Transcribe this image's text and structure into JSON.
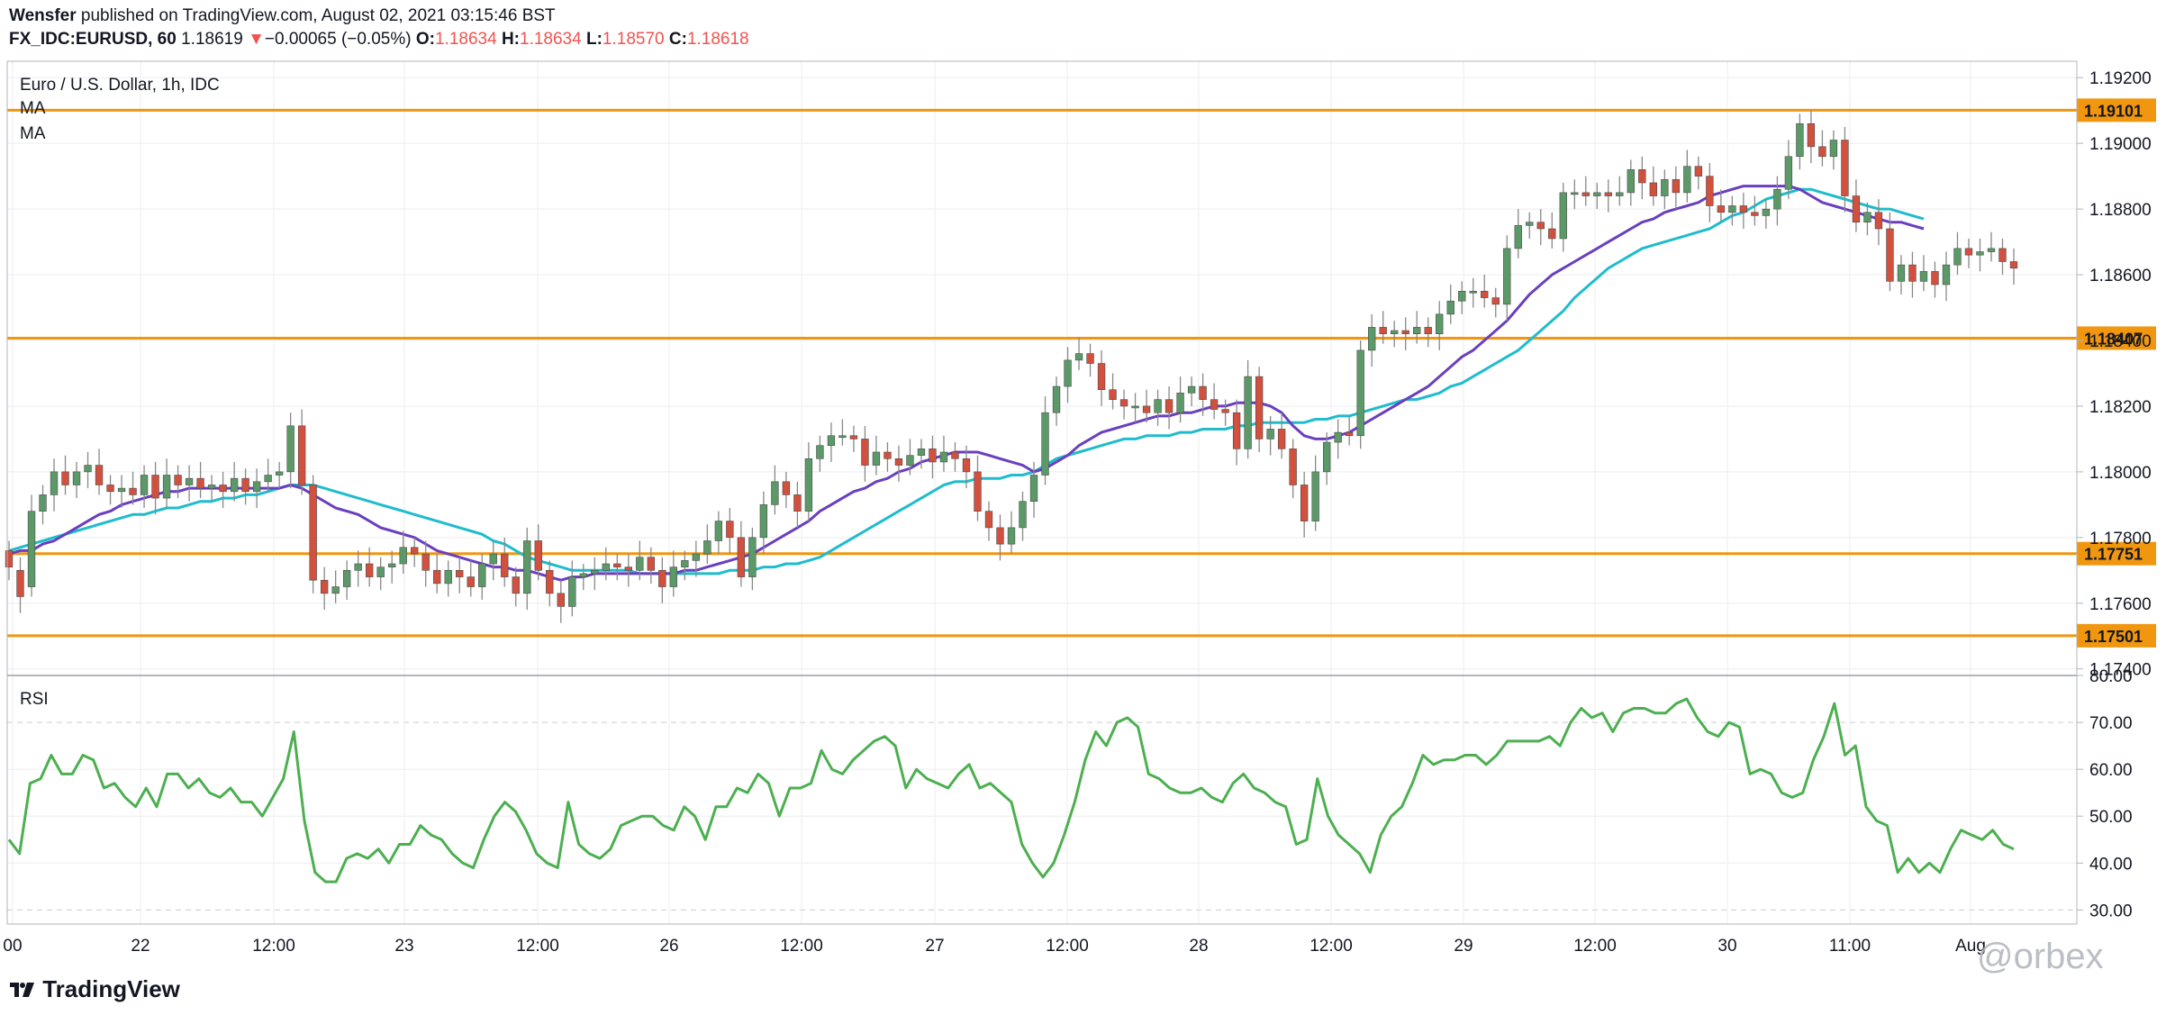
{
  "header": {
    "author": "Wensfer",
    "published": " published on TradingView.com, August 02, 2021 03:15:46 BST",
    "symbol_line": "FX_IDC:EURUSD, 60",
    "last": "1.18619",
    "change_arrow": "▼",
    "change": "−0.00065 (−0.05%)",
    "o_label": "O:",
    "o_val": "1.18634",
    "h_label": "H:",
    "h_val": "1.18634",
    "l_label": "L:",
    "l_val": "1.18570",
    "c_label": "C:",
    "c_val": "1.18618"
  },
  "legend": {
    "title": "Euro / U.S. Dollar, 1h, IDC",
    "ma1": "MA",
    "ma2": "MA",
    "rsi": "RSI"
  },
  "footer": {
    "logo": "TradingView",
    "watermark": "@orbex"
  },
  "colors": {
    "up": "#5b9a68",
    "down": "#d2503e",
    "wick": "#888888",
    "level": "#f0960f",
    "ma_fast": "#6a3fbf",
    "ma_slow": "#1ebccc",
    "rsi": "#4caf50",
    "grid": "#eceef1"
  },
  "chart_data": [
    {
      "type": "candlestick",
      "title": "Euro / U.S. Dollar, 1h, IDC",
      "ylim": [
        1.1738,
        1.1925
      ],
      "y_ticks": [
        "1.19200",
        "1.19000",
        "1.18800",
        "1.18600",
        "1.18400",
        "1.18200",
        "1.18000",
        "1.17800",
        "1.17600",
        "1.17400"
      ],
      "x_ticks": [
        "00",
        "22",
        "12:00",
        "23",
        "12:00",
        "26",
        "12:00",
        "27",
        "12:00",
        "28",
        "12:00",
        "29",
        "12:00",
        "30",
        "11:00",
        "Aug"
      ],
      "levels": [
        {
          "label": "1.19101",
          "value": 1.19101
        },
        {
          "label": "1.18407",
          "value": 1.18407
        },
        {
          "label": "1.17751",
          "value": 1.17751
        },
        {
          "label": "1.17501",
          "value": 1.17501
        }
      ],
      "candles": [
        [
          1.1776,
          1.1771
        ],
        [
          1.177,
          1.1762
        ],
        [
          1.1765,
          1.1788
        ],
        [
          1.1788,
          1.1793
        ],
        [
          1.1793,
          1.18
        ],
        [
          1.18,
          1.1796
        ],
        [
          1.1796,
          1.18
        ],
        [
          1.18,
          1.1802
        ],
        [
          1.1802,
          1.1796
        ],
        [
          1.1796,
          1.1794
        ],
        [
          1.1794,
          1.1795
        ],
        [
          1.1795,
          1.1793
        ],
        [
          1.1793,
          1.1799
        ],
        [
          1.1799,
          1.1792
        ],
        [
          1.1792,
          1.1799
        ],
        [
          1.1799,
          1.1796
        ],
        [
          1.1796,
          1.1798
        ],
        [
          1.1798,
          1.1795
        ],
        [
          1.1795,
          1.1796
        ],
        [
          1.1796,
          1.1794
        ],
        [
          1.1794,
          1.1798
        ],
        [
          1.1798,
          1.1794
        ],
        [
          1.1794,
          1.1797
        ],
        [
          1.1797,
          1.1799
        ],
        [
          1.1799,
          1.18
        ],
        [
          1.18,
          1.1814
        ],
        [
          1.1814,
          1.1796
        ],
        [
          1.1796,
          1.1767
        ],
        [
          1.1767,
          1.1763
        ],
        [
          1.1763,
          1.1765
        ],
        [
          1.1765,
          1.177
        ],
        [
          1.177,
          1.1772
        ],
        [
          1.1772,
          1.1768
        ],
        [
          1.1768,
          1.1771
        ],
        [
          1.1771,
          1.1772
        ],
        [
          1.1772,
          1.1777
        ],
        [
          1.1777,
          1.1775
        ],
        [
          1.1775,
          1.177
        ],
        [
          1.177,
          1.1766
        ],
        [
          1.1766,
          1.177
        ],
        [
          1.177,
          1.1768
        ],
        [
          1.1768,
          1.1765
        ],
        [
          1.1765,
          1.1772
        ],
        [
          1.1772,
          1.1775
        ],
        [
          1.1775,
          1.1768
        ],
        [
          1.1768,
          1.1763
        ],
        [
          1.1763,
          1.1779
        ],
        [
          1.1779,
          1.177
        ],
        [
          1.177,
          1.1763
        ],
        [
          1.1763,
          1.1759
        ],
        [
          1.1759,
          1.1768
        ],
        [
          1.1768,
          1.1769
        ],
        [
          1.1769,
          1.177
        ],
        [
          1.177,
          1.1772
        ],
        [
          1.1772,
          1.1771
        ],
        [
          1.1771,
          1.177
        ],
        [
          1.177,
          1.1774
        ],
        [
          1.1774,
          1.177
        ],
        [
          1.177,
          1.1765
        ],
        [
          1.1765,
          1.1771
        ],
        [
          1.1771,
          1.1773
        ],
        [
          1.1773,
          1.1775
        ],
        [
          1.1775,
          1.1779
        ],
        [
          1.1779,
          1.1785
        ],
        [
          1.1785,
          1.178
        ],
        [
          1.178,
          1.1768
        ],
        [
          1.1768,
          1.178
        ],
        [
          1.178,
          1.179
        ],
        [
          1.179,
          1.1797
        ],
        [
          1.1797,
          1.1793
        ],
        [
          1.1793,
          1.1788
        ],
        [
          1.1788,
          1.1804
        ],
        [
          1.1804,
          1.1808
        ],
        [
          1.1808,
          1.1811
        ],
        [
          1.1811,
          1.1811
        ],
        [
          1.1811,
          1.181
        ],
        [
          1.181,
          1.1802
        ],
        [
          1.1802,
          1.1806
        ],
        [
          1.1806,
          1.1804
        ],
        [
          1.1804,
          1.1802
        ],
        [
          1.1802,
          1.1805
        ],
        [
          1.1805,
          1.1807
        ],
        [
          1.1807,
          1.1803
        ],
        [
          1.1803,
          1.1806
        ],
        [
          1.1806,
          1.1804
        ],
        [
          1.1804,
          1.18
        ],
        [
          1.18,
          1.1788
        ],
        [
          1.1788,
          1.1783
        ],
        [
          1.1783,
          1.1778
        ],
        [
          1.1778,
          1.1783
        ],
        [
          1.1783,
          1.1791
        ],
        [
          1.1791,
          1.1799
        ],
        [
          1.1799,
          1.1818
        ],
        [
          1.1818,
          1.1826
        ],
        [
          1.1826,
          1.1834
        ],
        [
          1.1834,
          1.1836
        ],
        [
          1.1836,
          1.1833
        ],
        [
          1.1833,
          1.1825
        ],
        [
          1.1825,
          1.1822
        ],
        [
          1.1822,
          1.182
        ],
        [
          1.182,
          1.182
        ],
        [
          1.182,
          1.1818
        ],
        [
          1.1818,
          1.1822
        ],
        [
          1.1822,
          1.1818
        ],
        [
          1.1818,
          1.1824
        ],
        [
          1.1824,
          1.1826
        ],
        [
          1.1826,
          1.1822
        ],
        [
          1.1822,
          1.1819
        ],
        [
          1.1819,
          1.1818
        ],
        [
          1.1818,
          1.1807
        ],
        [
          1.1807,
          1.1829
        ],
        [
          1.1829,
          1.181
        ],
        [
          1.181,
          1.1813
        ],
        [
          1.1813,
          1.1807
        ],
        [
          1.1807,
          1.1796
        ],
        [
          1.1796,
          1.1785
        ],
        [
          1.1785,
          1.18
        ],
        [
          1.18,
          1.1809
        ],
        [
          1.1809,
          1.1812
        ],
        [
          1.1812,
          1.1811
        ],
        [
          1.1811,
          1.1837
        ],
        [
          1.1837,
          1.1844
        ],
        [
          1.1844,
          1.1842
        ],
        [
          1.1842,
          1.1843
        ],
        [
          1.1843,
          1.1842
        ],
        [
          1.1842,
          1.1844
        ],
        [
          1.1844,
          1.1842
        ],
        [
          1.1842,
          1.1848
        ],
        [
          1.1848,
          1.1852
        ],
        [
          1.1852,
          1.1855
        ],
        [
          1.1855,
          1.1855
        ],
        [
          1.1855,
          1.1853
        ],
        [
          1.1853,
          1.1851
        ],
        [
          1.1851,
          1.1868
        ],
        [
          1.1868,
          1.1875
        ],
        [
          1.1875,
          1.1876
        ],
        [
          1.1876,
          1.1874
        ],
        [
          1.1874,
          1.1871
        ],
        [
          1.1871,
          1.1885
        ],
        [
          1.1885,
          1.1885
        ],
        [
          1.1885,
          1.1884
        ],
        [
          1.1884,
          1.1885
        ],
        [
          1.1885,
          1.1884
        ],
        [
          1.1884,
          1.1885
        ],
        [
          1.1885,
          1.1892
        ],
        [
          1.1892,
          1.1888
        ],
        [
          1.1888,
          1.1884
        ],
        [
          1.1884,
          1.1889
        ],
        [
          1.1889,
          1.1885
        ],
        [
          1.1885,
          1.1893
        ],
        [
          1.1893,
          1.189
        ],
        [
          1.189,
          1.1881
        ],
        [
          1.1881,
          1.1879
        ],
        [
          1.1879,
          1.1881
        ],
        [
          1.1881,
          1.1879
        ],
        [
          1.1879,
          1.1878
        ],
        [
          1.1878,
          1.188
        ],
        [
          1.188,
          1.1886
        ],
        [
          1.1886,
          1.1896
        ],
        [
          1.1896,
          1.1906
        ],
        [
          1.1906,
          1.1899
        ],
        [
          1.1899,
          1.1896
        ],
        [
          1.1896,
          1.1901
        ],
        [
          1.1901,
          1.1884
        ],
        [
          1.1884,
          1.1876
        ],
        [
          1.1876,
          1.1879
        ],
        [
          1.1879,
          1.1874
        ],
        [
          1.1874,
          1.1858
        ],
        [
          1.1858,
          1.1863
        ],
        [
          1.1863,
          1.1858
        ],
        [
          1.1858,
          1.1861
        ],
        [
          1.1861,
          1.1857
        ],
        [
          1.1857,
          1.1863
        ],
        [
          1.1863,
          1.1868
        ],
        [
          1.1868,
          1.1866
        ],
        [
          1.1866,
          1.1867
        ],
        [
          1.1867,
          1.1868
        ],
        [
          1.1868,
          1.1864
        ],
        [
          1.1864,
          1.1862
        ]
      ],
      "ma_fast": [
        1.1775,
        1.1776,
        1.1776,
        1.1778,
        1.1779,
        1.1781,
        1.1783,
        1.1785,
        1.1787,
        1.1788,
        1.179,
        1.1791,
        1.1792,
        1.1793,
        1.1794,
        1.1794,
        1.1795,
        1.1795,
        1.1795,
        1.1795,
        1.1795,
        1.1795,
        1.1795,
        1.1795,
        1.1795,
        1.1796,
        1.1795,
        1.1793,
        1.1791,
        1.1789,
        1.1788,
        1.1787,
        1.1785,
        1.1783,
        1.1782,
        1.1781,
        1.178,
        1.1778,
        1.1776,
        1.1775,
        1.1774,
        1.1773,
        1.1772,
        1.1771,
        1.1771,
        1.177,
        1.177,
        1.1769,
        1.1768,
        1.1767,
        1.1768,
        1.1768,
        1.1769,
        1.1769,
        1.1769,
        1.1769,
        1.1769,
        1.1769,
        1.1769,
        1.1769,
        1.177,
        1.177,
        1.1771,
        1.1772,
        1.1773,
        1.1774,
        1.1775,
        1.1777,
        1.1779,
        1.1781,
        1.1783,
        1.1785,
        1.1788,
        1.179,
        1.1792,
        1.1794,
        1.1795,
        1.1797,
        1.1798,
        1.18,
        1.1801,
        1.1803,
        1.1804,
        1.1805,
        1.1806,
        1.1806,
        1.1806,
        1.1805,
        1.1804,
        1.1803,
        1.1802,
        1.18,
        1.1801,
        1.1803,
        1.1805,
        1.1808,
        1.181,
        1.1812,
        1.1813,
        1.1814,
        1.1815,
        1.1816,
        1.1817,
        1.1817,
        1.1818,
        1.1818,
        1.1819,
        1.182,
        1.182,
        1.1821,
        1.1821,
        1.1821,
        1.182,
        1.1818,
        1.1814,
        1.1811,
        1.181,
        1.181,
        1.1811,
        1.1812,
        1.1814,
        1.1816,
        1.1818,
        1.182,
        1.1822,
        1.1824,
        1.1826,
        1.1829,
        1.1832,
        1.1835,
        1.1837,
        1.184,
        1.1843,
        1.1846,
        1.185,
        1.1854,
        1.1857,
        1.186,
        1.1862,
        1.1864,
        1.1866,
        1.1868,
        1.187,
        1.1872,
        1.1874,
        1.1876,
        1.1877,
        1.1879,
        1.188,
        1.1881,
        1.1882,
        1.1884,
        1.1885,
        1.1886,
        1.1887,
        1.1887,
        1.1887,
        1.1887,
        1.1887,
        1.1886,
        1.1884,
        1.1882,
        1.1881,
        1.188,
        1.1879,
        1.1878,
        1.1877,
        1.1876,
        1.1876,
        1.1875,
        1.1874
      ],
      "ma_slow": [
        1.1776,
        1.1777,
        1.1778,
        1.1779,
        1.178,
        1.1781,
        1.1782,
        1.1783,
        1.1784,
        1.1785,
        1.1786,
        1.1787,
        1.1787,
        1.1788,
        1.1789,
        1.1789,
        1.179,
        1.1791,
        1.1791,
        1.1792,
        1.1792,
        1.1793,
        1.1793,
        1.1794,
        1.1795,
        1.1796,
        1.1796,
        1.1796,
        1.1795,
        1.1794,
        1.1793,
        1.1792,
        1.1791,
        1.179,
        1.1789,
        1.1788,
        1.1787,
        1.1786,
        1.1785,
        1.1784,
        1.1783,
        1.1782,
        1.1781,
        1.1779,
        1.1778,
        1.1776,
        1.1774,
        1.1773,
        1.1772,
        1.1771,
        1.177,
        1.177,
        1.177,
        1.177,
        1.177,
        1.177,
        1.1769,
        1.1769,
        1.1769,
        1.1769,
        1.1769,
        1.1769,
        1.1769,
        1.1769,
        1.177,
        1.177,
        1.177,
        1.1771,
        1.1771,
        1.1772,
        1.1772,
        1.1773,
        1.1774,
        1.1776,
        1.1778,
        1.178,
        1.1782,
        1.1784,
        1.1786,
        1.1788,
        1.179,
        1.1792,
        1.1794,
        1.1796,
        1.1797,
        1.1797,
        1.1798,
        1.1798,
        1.1798,
        1.1799,
        1.1799,
        1.18,
        1.1802,
        1.1804,
        1.1805,
        1.1806,
        1.1807,
        1.1808,
        1.1809,
        1.181,
        1.181,
        1.1811,
        1.1811,
        1.1811,
        1.1812,
        1.1812,
        1.1813,
        1.1813,
        1.1813,
        1.1814,
        1.1814,
        1.1815,
        1.1815,
        1.1815,
        1.1815,
        1.1815,
        1.1816,
        1.1816,
        1.1817,
        1.1817,
        1.1818,
        1.1819,
        1.182,
        1.1821,
        1.1822,
        1.1822,
        1.1823,
        1.1824,
        1.1826,
        1.1827,
        1.1829,
        1.1831,
        1.1833,
        1.1835,
        1.1837,
        1.184,
        1.1843,
        1.1846,
        1.1849,
        1.1853,
        1.1856,
        1.1859,
        1.1862,
        1.1864,
        1.1866,
        1.1868,
        1.1869,
        1.187,
        1.1871,
        1.1872,
        1.1873,
        1.1874,
        1.1876,
        1.1878,
        1.1879,
        1.1881,
        1.1883,
        1.1884,
        1.1885,
        1.1886,
        1.1886,
        1.1885,
        1.1884,
        1.1883,
        1.1882,
        1.1881,
        1.188,
        1.188,
        1.1879,
        1.1878,
        1.1877
      ]
    },
    {
      "type": "line",
      "title": "RSI",
      "ylim": [
        27,
        80
      ],
      "y_ticks": [
        "80.00",
        "70.00",
        "60.00",
        "50.00",
        "40.00",
        "30.00"
      ],
      "values": [
        45,
        42,
        57,
        58,
        63,
        59,
        59,
        63,
        62,
        56,
        57,
        54,
        52,
        56,
        52,
        59,
        59,
        56,
        58,
        55,
        54,
        56,
        53,
        53,
        50,
        54,
        58,
        68,
        49,
        38,
        36,
        36,
        41,
        42,
        41,
        43,
        40,
        44,
        44,
        48,
        46,
        45,
        42,
        40,
        39,
        45,
        50,
        53,
        51,
        47,
        42,
        40,
        39,
        53,
        44,
        42,
        41,
        43,
        48,
        49,
        50,
        50,
        48,
        47,
        52,
        50,
        45,
        52,
        52,
        56,
        55,
        59,
        57,
        50,
        56,
        56,
        57,
        64,
        60,
        59,
        62,
        64,
        66,
        67,
        65,
        56,
        60,
        58,
        57,
        56,
        59,
        61,
        56,
        57,
        55,
        53,
        44,
        40,
        37,
        40,
        46,
        53,
        62,
        68,
        65,
        70,
        71,
        69,
        59,
        58,
        56,
        55,
        55,
        56,
        54,
        53,
        57,
        59,
        56,
        55,
        53,
        52,
        44,
        45,
        58,
        50,
        46,
        44,
        42,
        38,
        46,
        50,
        52,
        57,
        63,
        61,
        62,
        62,
        63,
        63,
        61,
        63,
        66,
        66,
        66,
        66,
        67,
        65,
        70,
        73,
        71,
        72,
        68,
        72,
        73,
        73,
        72,
        72,
        74,
        75,
        71,
        68,
        67,
        70,
        69,
        59,
        60,
        59,
        55,
        54,
        55,
        62,
        67,
        74,
        63,
        65,
        52,
        49,
        48,
        38,
        41,
        38,
        40,
        38,
        43,
        47,
        46,
        45,
        47,
        44,
        43
      ]
    }
  ]
}
